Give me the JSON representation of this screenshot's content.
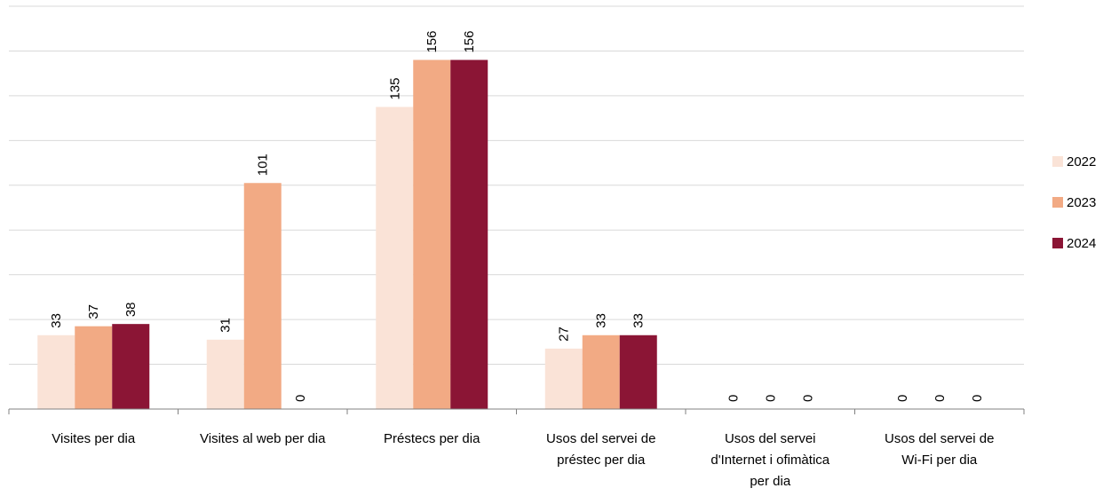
{
  "chart_data": {
    "type": "bar",
    "categories": [
      [
        "Visites per dia"
      ],
      [
        "Visites al web per dia"
      ],
      [
        "Préstecs per dia"
      ],
      [
        "Usos del servei de",
        "préstec per dia"
      ],
      [
        "Usos del servei",
        "d'Internet i ofimàtica",
        "per dia"
      ],
      [
        "Usos del servei de",
        "Wi-Fi per dia"
      ]
    ],
    "series": [
      {
        "name": "2022",
        "color": "#fae3d7",
        "values": [
          33,
          31,
          135,
          27,
          0,
          0
        ]
      },
      {
        "name": "2023",
        "color": "#f2aa84",
        "values": [
          37,
          101,
          156,
          33,
          0,
          0
        ]
      },
      {
        "name": "2024",
        "color": "#8b1535",
        "values": [
          38,
          0,
          156,
          33,
          0,
          0
        ]
      }
    ],
    "ylim": [
      0,
      180
    ],
    "grid": true,
    "legend": "right"
  }
}
